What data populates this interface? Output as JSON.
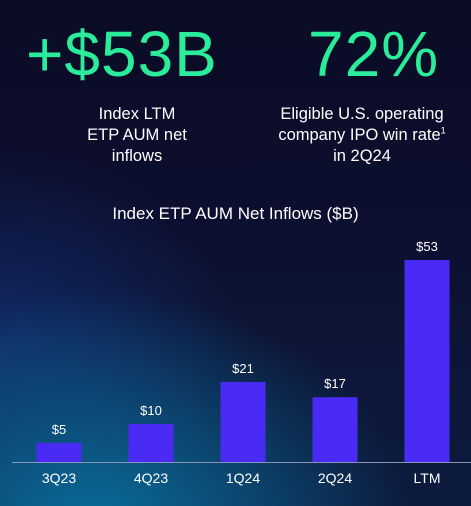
{
  "stats": [
    {
      "value": "+$53B",
      "label_lines": [
        "Index LTM",
        "ETP AUM net",
        "inflows"
      ],
      "footnote": ""
    },
    {
      "value": "72%",
      "label_lines": [
        "Eligible U.S. operating",
        "company IPO win rate",
        "in 2Q24"
      ],
      "footnote": "1"
    }
  ],
  "colors": {
    "accent_green": "#2bec9b",
    "bar": "#4a2bf5",
    "axis": "#8a93b8"
  },
  "chart_data": {
    "type": "bar",
    "title": "Index ETP AUM Net Inflows ($B)",
    "categories": [
      "3Q23",
      "4Q23",
      "1Q24",
      "2Q24",
      "LTM"
    ],
    "values": [
      5,
      10,
      21,
      17,
      53
    ],
    "data_labels": [
      "$5",
      "$10",
      "$21",
      "$17",
      "$53"
    ],
    "xlabel": "",
    "ylabel": "",
    "ylim": [
      0,
      53
    ],
    "grid": false,
    "legend": "none"
  }
}
